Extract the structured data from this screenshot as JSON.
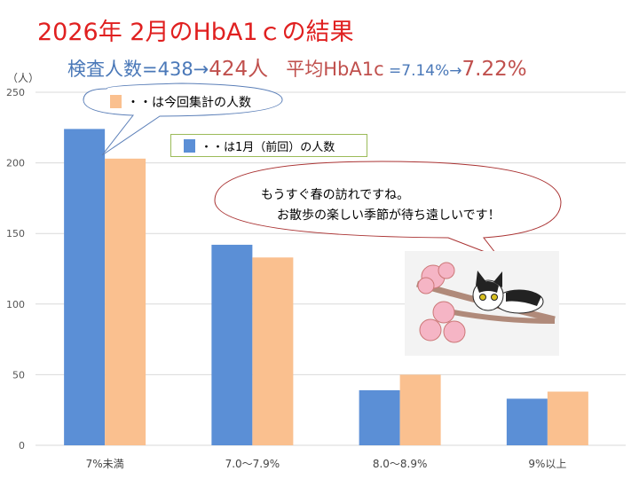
{
  "header": {
    "title": "2026年 2月のHbA1ｃの結果",
    "count_label": "検査人数=438→",
    "count_new": "424人",
    "avg_label": "平均HbA1c",
    "avg_old": " =7.14%→",
    "avg_new": "7.22%"
  },
  "callouts": {
    "current_legend": "・・は今回集計の人数",
    "previous_legend": "・・は1月（前回）の人数",
    "message_line1": "もうすぐ春の訪れですね。",
    "message_line2": "お散歩の楽しい季節が待ち遠しいです！"
  },
  "colors": {
    "previous": "#5b8fd6",
    "current": "#fac08f",
    "title": "#e02020"
  },
  "chart_data": {
    "type": "bar",
    "ylabel": "（人）",
    "ylim": [
      0,
      250
    ],
    "yticks": [
      0,
      50,
      100,
      150,
      200,
      250
    ],
    "grid": true,
    "categories": [
      "7%未満",
      "7.0～7.9%",
      "8.0～8.9%",
      "9%以上"
    ],
    "series": [
      {
        "name": "1月（前回）",
        "values": [
          224,
          142,
          39,
          33
        ]
      },
      {
        "name": "今回集計",
        "values": [
          203,
          133,
          50,
          38
        ]
      }
    ]
  }
}
